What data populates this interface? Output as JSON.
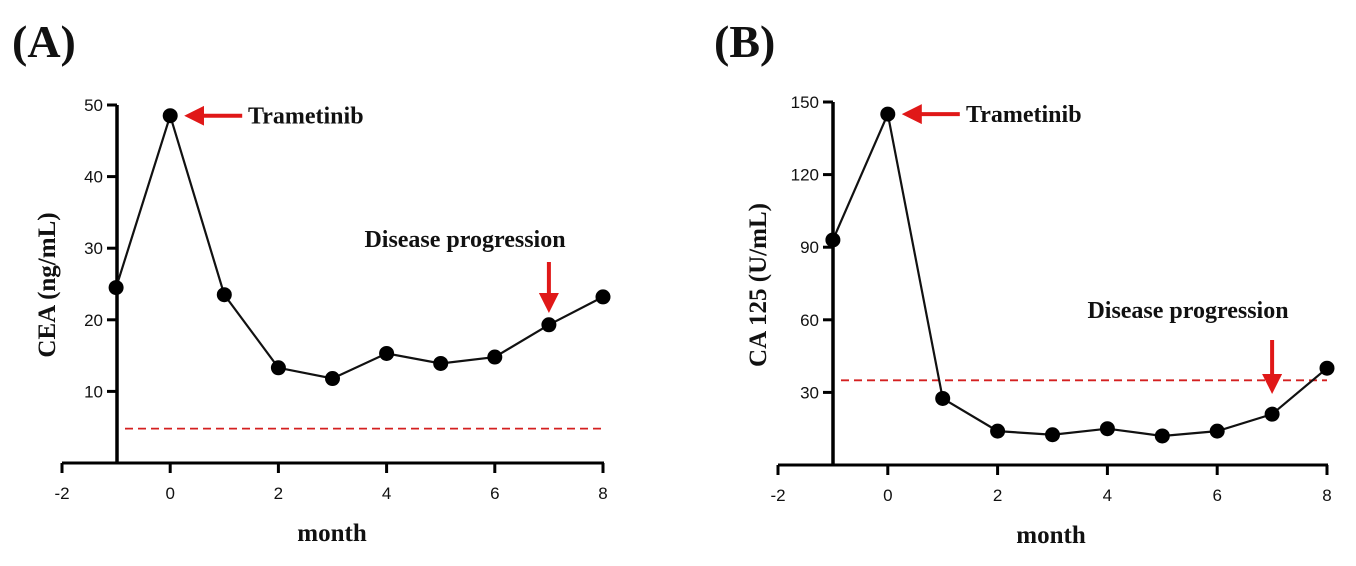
{
  "colors": {
    "line": "#111111",
    "marker": "#000000",
    "reference": "#d42020",
    "arrow": "#e01818"
  },
  "chart_data": [
    {
      "panel": "(A)",
      "type": "line",
      "xlabel": "month",
      "ylabel": "CEA (ng/mL)",
      "xlim": [
        -2,
        8
      ],
      "ylim": [
        0,
        50
      ],
      "xticks": [
        "-2",
        "0",
        "2",
        "4",
        "6",
        "8"
      ],
      "yticks": [
        "10",
        "20",
        "30",
        "40",
        "50"
      ],
      "x": [
        -1,
        0,
        1,
        2,
        3,
        4,
        5,
        6,
        7,
        8
      ],
      "values": [
        24.5,
        48.5,
        23.5,
        13.3,
        11.8,
        15.3,
        13.9,
        14.8,
        19.3,
        23.2
      ],
      "reference_line": 4.8,
      "annotations": [
        {
          "text": "Trametinib",
          "x": 0,
          "y": 48.5,
          "arrow": "left"
        },
        {
          "text": "Disease progression",
          "x": 7,
          "y": 19.3,
          "arrow": "down"
        }
      ],
      "grid": false
    },
    {
      "panel": "(B)",
      "type": "line",
      "xlabel": "month",
      "ylabel": "CA 125 (U/mL)",
      "xlim": [
        -2,
        8
      ],
      "ylim": [
        0,
        150
      ],
      "xticks": [
        "-2",
        "0",
        "2",
        "4",
        "6",
        "8"
      ],
      "yticks": [
        "30",
        "60",
        "90",
        "120",
        "150"
      ],
      "x": [
        -1,
        0,
        1,
        2,
        3,
        4,
        5,
        6,
        7,
        8
      ],
      "values": [
        93,
        145,
        27.5,
        14,
        12.5,
        15,
        12,
        14,
        21,
        40
      ],
      "reference_line": 35,
      "annotations": [
        {
          "text": "Trametinib",
          "x": 0,
          "y": 145,
          "arrow": "left"
        },
        {
          "text": "Disease progression",
          "x": 7,
          "y": 21,
          "arrow": "down"
        }
      ],
      "grid": false
    }
  ]
}
